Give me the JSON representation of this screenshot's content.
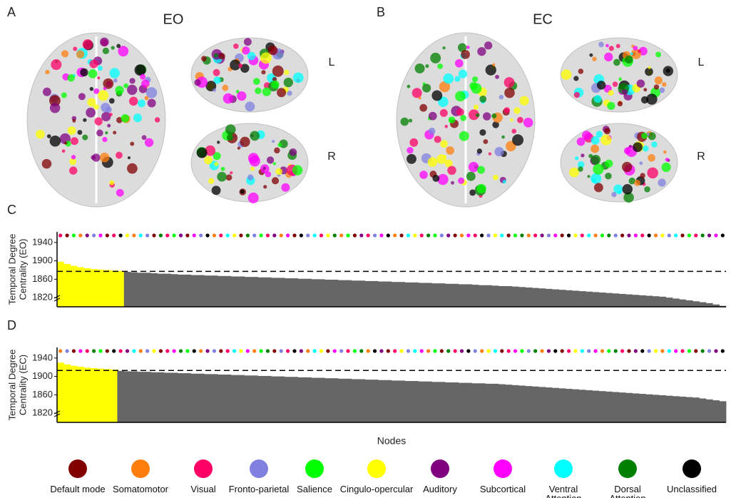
{
  "brain_panels": [
    {
      "letter": "A",
      "condition": "EO",
      "views": [
        "L",
        "R"
      ]
    },
    {
      "letter": "B",
      "condition": "EC",
      "views": [
        "L",
        "R"
      ]
    }
  ],
  "chart_data": [
    {
      "type": "bar",
      "letter": "C",
      "y_label": [
        "Temporal Degree",
        "Centrality (EO)"
      ],
      "ylim": [
        1800,
        1963
      ],
      "yticks": [
        1820,
        1860,
        1900,
        1940
      ],
      "threshold": 1877,
      "color": "#666666",
      "highlight_color": "#ffff00",
      "values": [
        1898,
        1893,
        1889,
        1886,
        1884,
        1882,
        1881,
        1880,
        1879,
        1878,
        1876,
        1875,
        1874,
        1874,
        1873,
        1872,
        1872,
        1871,
        1870,
        1870,
        1869,
        1869,
        1868,
        1868,
        1867,
        1867,
        1866,
        1866,
        1865,
        1865,
        1864,
        1864,
        1863,
        1863,
        1862,
        1862,
        1861,
        1861,
        1860,
        1860,
        1859,
        1859,
        1858,
        1858,
        1857,
        1857,
        1856,
        1856,
        1855,
        1855,
        1854,
        1854,
        1853,
        1853,
        1852,
        1852,
        1851,
        1851,
        1850,
        1850,
        1849,
        1849,
        1848,
        1847,
        1847,
        1846,
        1845,
        1845,
        1844,
        1843,
        1842,
        1841,
        1840,
        1839,
        1838,
        1837,
        1836,
        1835,
        1834,
        1833,
        1832,
        1831,
        1830,
        1829,
        1828,
        1827,
        1826,
        1825,
        1824,
        1823,
        1822,
        1820,
        1818,
        1816,
        1814,
        1812,
        1810,
        1808,
        1805,
        1802
      ],
      "node_networks": [
        2,
        0,
        4,
        1,
        6,
        3,
        7,
        0,
        2,
        10,
        5,
        1,
        8,
        3,
        0,
        9,
        2,
        4,
        6,
        0,
        7,
        3,
        10,
        1,
        2,
        8,
        5,
        0,
        9,
        3,
        4,
        2,
        6,
        1,
        7,
        0,
        10,
        3,
        8,
        2,
        5,
        9,
        1,
        4,
        0,
        6,
        2,
        3,
        7,
        10,
        1,
        0,
        8,
        5,
        2,
        9,
        4,
        3,
        6,
        0,
        1,
        7,
        2,
        10,
        3,
        5,
        8,
        0,
        4,
        9,
        1,
        2,
        6,
        3,
        7,
        0,
        10,
        5,
        2,
        8,
        1,
        4,
        9,
        3,
        0,
        6,
        7,
        2,
        10,
        1,
        5,
        3,
        8,
        0,
        4,
        2,
        9,
        6,
        7,
        10
      ],
      "grid": false
    },
    {
      "type": "bar",
      "letter": "D",
      "y_label": [
        "Temporal Degree",
        "Centrality (EC)"
      ],
      "ylim": [
        1800,
        1963
      ],
      "yticks": [
        1820,
        1860,
        1900,
        1940
      ],
      "threshold": 1913,
      "color": "#666666",
      "highlight_color": "#ffff00",
      "values": [
        1930,
        1926,
        1923,
        1921,
        1919,
        1918,
        1917,
        1916,
        1915,
        1912,
        1911,
        1911,
        1910,
        1910,
        1909,
        1909,
        1908,
        1908,
        1907,
        1907,
        1906,
        1906,
        1905,
        1905,
        1904,
        1904,
        1903,
        1903,
        1902,
        1902,
        1901,
        1901,
        1900,
        1900,
        1899,
        1899,
        1898,
        1898,
        1897,
        1897,
        1896,
        1896,
        1895,
        1895,
        1894,
        1894,
        1893,
        1893,
        1892,
        1892,
        1891,
        1891,
        1890,
        1890,
        1889,
        1889,
        1888,
        1888,
        1887,
        1887,
        1886,
        1886,
        1885,
        1885,
        1884,
        1884,
        1883,
        1882,
        1881,
        1880,
        1879,
        1878,
        1877,
        1876,
        1875,
        1874,
        1873,
        1872,
        1871,
        1870,
        1869,
        1868,
        1867,
        1866,
        1865,
        1864,
        1863,
        1862,
        1861,
        1860,
        1859,
        1858,
        1857,
        1856,
        1855,
        1854,
        1852,
        1850,
        1848,
        1846
      ],
      "node_networks": [
        1,
        3,
        0,
        7,
        2,
        9,
        4,
        0,
        10,
        2,
        6,
        8,
        1,
        3,
        5,
        0,
        2,
        7,
        9,
        4,
        10,
        1,
        6,
        3,
        0,
        2,
        8,
        5,
        7,
        1,
        4,
        9,
        0,
        3,
        2,
        10,
        6,
        1,
        8,
        5,
        0,
        7,
        3,
        2,
        4,
        9,
        1,
        10,
        6,
        0,
        2,
        5,
        3,
        8,
        7,
        1,
        4,
        0,
        9,
        2,
        6,
        10,
        3,
        1,
        5,
        8,
        0,
        2,
        7,
        4,
        3,
        9,
        1,
        6,
        10,
        0,
        2,
        5,
        8,
        3,
        7,
        1,
        4,
        9,
        2,
        0,
        6,
        10,
        3,
        5,
        1,
        8,
        7,
        2,
        4,
        0,
        9,
        3,
        6,
        10
      ],
      "grid": false
    }
  ],
  "x_label": "Nodes",
  "networks": [
    {
      "name": "Default mode",
      "color": "#800000"
    },
    {
      "name": "Somatomotor",
      "color": "#ff7f0e"
    },
    {
      "name": "Visual",
      "color": "#ff0066"
    },
    {
      "name": "Fronto-parietal",
      "color": "#8080e0"
    },
    {
      "name": "Salience",
      "color": "#00ff00"
    },
    {
      "name": "Cingulo-opercular",
      "color": "#ffff00"
    },
    {
      "name": "Auditory",
      "color": "#800080"
    },
    {
      "name": "Subcortical",
      "color": "#ff00ff"
    },
    {
      "name": "Ventral Attention",
      "color": "#00ffff"
    },
    {
      "name": "Dorsal Attention",
      "color": "#008000"
    },
    {
      "name": "Unclassified",
      "color": "#000000"
    }
  ]
}
